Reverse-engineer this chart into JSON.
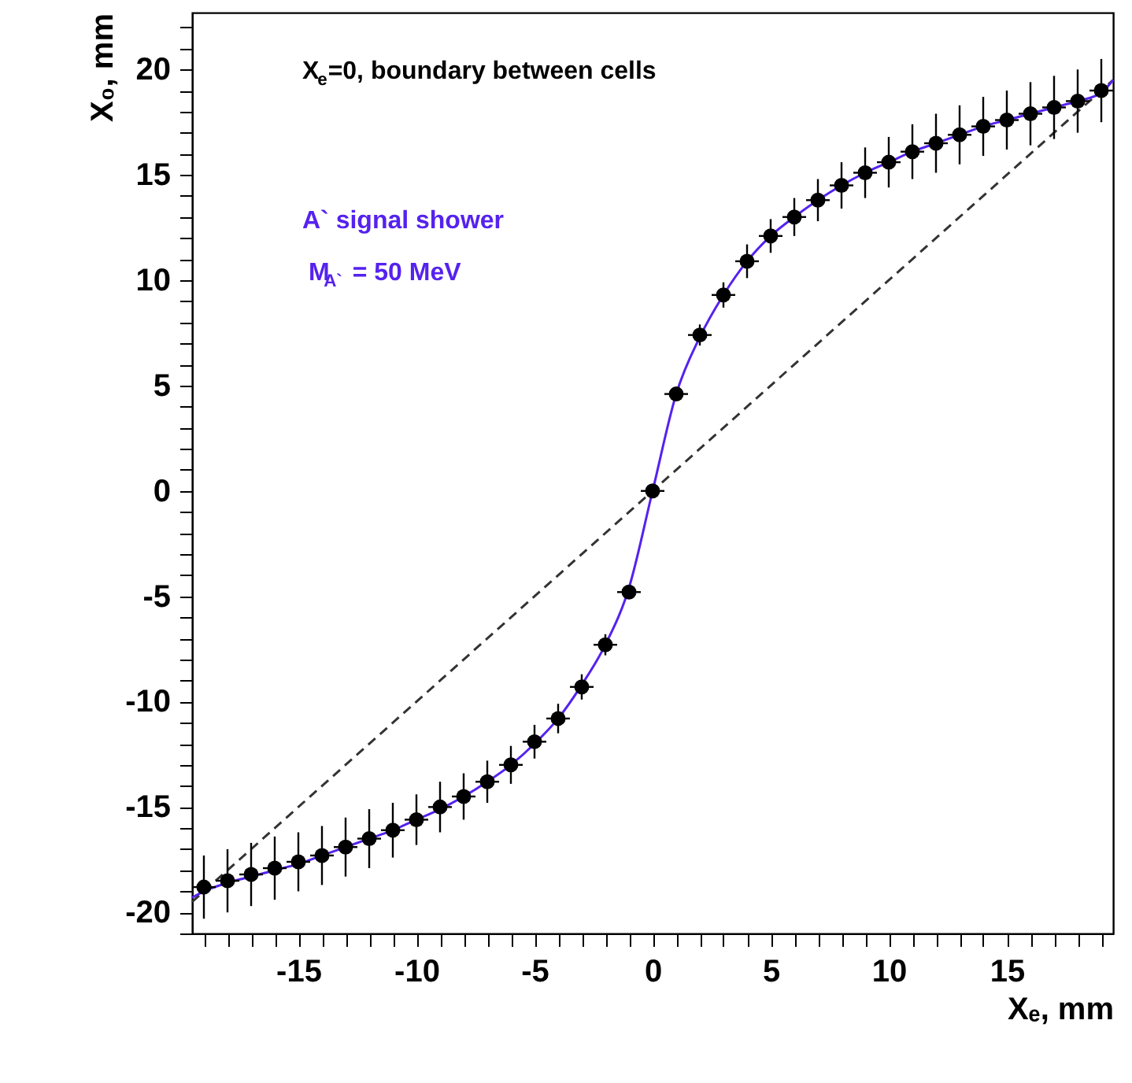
{
  "chart_data": {
    "type": "scatter",
    "xlabel": "Xₑ, mm",
    "ylabel": "X₀, mm",
    "annotations": [
      "X$_{e}$=0, boundary between cells",
      "A` signal shower",
      "M$_{A`}$ = 50 MeV"
    ],
    "x": [
      -19,
      -18,
      -17,
      -16,
      -15,
      -14,
      -13,
      -12,
      -11,
      -10,
      -9,
      -8,
      -7,
      -6,
      -5,
      -4,
      -3,
      -2,
      -1,
      0,
      1,
      2,
      3,
      4,
      5,
      6,
      7,
      8,
      9,
      10,
      11,
      12,
      13,
      14,
      15,
      16,
      17,
      18,
      19
    ],
    "xlim": [
      -19.5,
      19.5
    ],
    "ylim": [
      -21,
      22.7
    ],
    "xticks": [
      {
        "value": -19,
        "label": null
      },
      {
        "value": -18,
        "label": null
      },
      {
        "value": -17,
        "label": null
      },
      {
        "value": -16,
        "label": null
      },
      -15,
      {
        "value": -14,
        "label": null
      },
      {
        "value": -13,
        "label": null
      },
      {
        "value": -12,
        "label": null
      },
      {
        "value": -11,
        "label": null
      },
      -10,
      {
        "value": -9,
        "label": null
      },
      {
        "value": -8,
        "label": null
      },
      {
        "value": -7,
        "label": null
      },
      {
        "value": -6,
        "label": null
      },
      -5,
      {
        "value": -4,
        "label": null
      },
      {
        "value": -3,
        "label": null
      },
      {
        "value": -2,
        "label": null
      },
      {
        "value": -1,
        "label": null
      },
      0,
      {
        "value": 1,
        "label": null
      },
      {
        "value": 2,
        "label": null
      },
      {
        "value": 3,
        "label": null
      },
      {
        "value": 4,
        "label": null
      },
      5,
      {
        "value": 6,
        "label": null
      },
      {
        "value": 7,
        "label": null
      },
      {
        "value": 8,
        "label": null
      },
      {
        "value": 9,
        "label": null
      },
      10,
      {
        "value": 11,
        "label": null
      },
      {
        "value": 12,
        "label": null
      },
      {
        "value": 13,
        "label": null
      },
      {
        "value": 14,
        "label": null
      },
      15,
      {
        "value": 16,
        "label": null
      },
      {
        "value": 17,
        "label": null
      },
      {
        "value": 18,
        "label": null
      },
      {
        "value": 19,
        "label": null
      }
    ],
    "yticks": [
      {
        "value": -21,
        "label": null
      },
      -20,
      {
        "value": -19,
        "label": null
      },
      {
        "value": -18,
        "label": null
      },
      {
        "value": -17,
        "label": null
      },
      {
        "value": -16,
        "label": null
      },
      -15,
      {
        "value": -14,
        "label": null
      },
      {
        "value": -13,
        "label": null
      },
      {
        "value": -12,
        "label": null
      },
      {
        "value": -11,
        "label": null
      },
      -10,
      {
        "value": -9,
        "label": null
      },
      {
        "value": -8,
        "label": null
      },
      {
        "value": -7,
        "label": null
      },
      {
        "value": -6,
        "label": null
      },
      -5,
      {
        "value": -4,
        "label": null
      },
      {
        "value": -3,
        "label": null
      },
      {
        "value": -2,
        "label": null
      },
      {
        "value": -1,
        "label": null
      },
      0,
      {
        "value": 1,
        "label": null
      },
      {
        "value": 2,
        "label": null
      },
      {
        "value": 3,
        "label": null
      },
      {
        "value": 4,
        "label": null
      },
      5,
      {
        "value": 6,
        "label": null
      },
      {
        "value": 7,
        "label": null
      },
      {
        "value": 8,
        "label": null
      },
      {
        "value": 9,
        "label": null
      },
      10,
      {
        "value": 11,
        "label": null
      },
      {
        "value": 12,
        "label": null
      },
      {
        "value": 13,
        "label": null
      },
      {
        "value": 14,
        "label": null
      },
      15,
      {
        "value": 16,
        "label": null
      },
      {
        "value": 17,
        "label": null
      },
      {
        "value": 18,
        "label": null
      },
      {
        "value": 19,
        "label": null
      },
      20,
      {
        "value": 21,
        "label": null
      },
      {
        "value": 22,
        "label": null
      }
    ],
    "grid": false,
    "series": [
      {
        "type": "line",
        "color": "#333333",
        "line_style": "dashed",
        "x": [
          -19.5,
          19.5
        ],
        "values": [
          -19.5,
          19.5
        ]
      },
      {
        "type": "line",
        "color": "#5522ee",
        "line_style": "solid",
        "x": [
          -19.5,
          -19,
          -18,
          -17,
          -16,
          -15,
          -14,
          -13,
          -12,
          -11,
          -10,
          -9,
          -8,
          -7,
          -6,
          -5,
          -4,
          -3,
          -2,
          -1,
          0,
          1,
          2,
          3,
          4,
          5,
          6,
          7,
          8,
          9,
          10,
          11,
          12,
          13,
          14,
          15,
          16,
          17,
          18,
          19,
          19.5
        ],
        "values": [
          -19.3,
          -19.0,
          -18.6,
          -18.3,
          -18.0,
          -17.7,
          -17.3,
          -16.9,
          -16.5,
          -16.1,
          -15.6,
          -15.1,
          -14.5,
          -13.8,
          -13.0,
          -12.0,
          -10.8,
          -9.2,
          -7.3,
          -4.6,
          0,
          4.6,
          7.3,
          9.3,
          10.9,
          12.1,
          13.0,
          13.8,
          14.5,
          15.1,
          15.6,
          16.1,
          16.5,
          16.9,
          17.3,
          17.6,
          17.9,
          18.2,
          18.5,
          18.9,
          19.5
        ]
      },
      {
        "type": "scatter",
        "color": "#000000",
        "marker": "circle",
        "values": [
          -18.8,
          -18.5,
          -18.2,
          -17.9,
          -17.6,
          -17.3,
          -16.9,
          -16.5,
          -16.1,
          -15.6,
          -15.0,
          -14.5,
          -13.8,
          -13.0,
          -11.9,
          -10.8,
          -9.3,
          -7.3,
          -4.8,
          0,
          4.6,
          7.4,
          9.3,
          10.9,
          12.1,
          13.0,
          13.8,
          14.5,
          15.1,
          15.6,
          16.1,
          16.5,
          16.9,
          17.3,
          17.6,
          17.9,
          18.2,
          18.5,
          19.0
        ],
        "errors": [
          1.5,
          1.5,
          1.5,
          1.5,
          1.4,
          1.4,
          1.4,
          1.4,
          1.3,
          1.2,
          1.2,
          1.1,
          1.0,
          0.9,
          0.8,
          0.7,
          0.6,
          0.5,
          0.3,
          0.2,
          0.3,
          0.5,
          0.6,
          0.8,
          0.8,
          0.9,
          1.0,
          1.1,
          1.2,
          1.2,
          1.3,
          1.4,
          1.4,
          1.4,
          1.4,
          1.5,
          1.5,
          1.5,
          1.5
        ],
        "xerrors": [
          0.5,
          0.5,
          0.5,
          0.5,
          0.5,
          0.5,
          0.5,
          0.5,
          0.5,
          0.5,
          0.5,
          0.5,
          0.5,
          0.5,
          0.5,
          0.5,
          0.5,
          0.5,
          0.5,
          0.5,
          0.5,
          0.5,
          0.5,
          0.5,
          0.5,
          0.5,
          0.5,
          0.5,
          0.5,
          0.5,
          0.5,
          0.5,
          0.5,
          0.5,
          0.5,
          0.5,
          0.5,
          0.5,
          0.5
        ]
      }
    ]
  }
}
